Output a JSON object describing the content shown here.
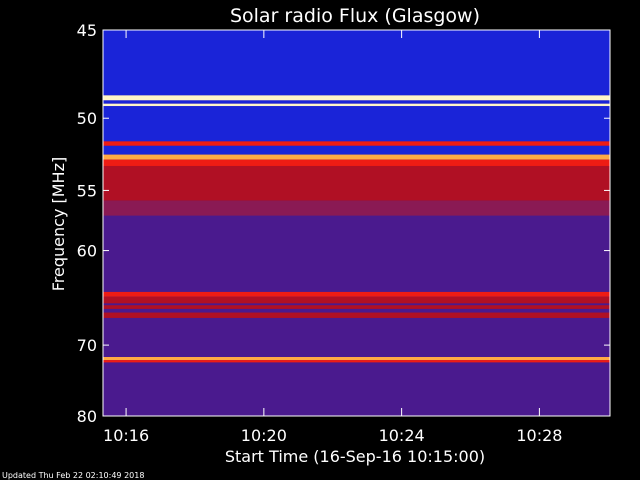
{
  "chart_data": {
    "type": "heatmap",
    "title": "Solar radio Flux (Glasgow)",
    "xlabel": "Start Time (16-Sep-16 10:15:00)",
    "ylabel": "Frequency [MHz]",
    "footer": "Updated Thu Feb 22 02:10:49 2018",
    "x_ticks": [
      "10:16",
      "10:20",
      "10:24",
      "10:28"
    ],
    "x_tick_minutes": [
      1,
      5,
      9,
      13
    ],
    "x_range_minutes": [
      0.33,
      15.05
    ],
    "y_ticks": [
      45,
      50,
      55,
      60,
      70,
      80
    ],
    "ylim": [
      45,
      80
    ],
    "y_scale": "reciprocal",
    "background_band": "purple",
    "bands": [
      {
        "from": 45.0,
        "to": 48.6,
        "level": "blue"
      },
      {
        "from": 48.6,
        "to": 48.9,
        "level": "white"
      },
      {
        "from": 48.9,
        "to": 49.1,
        "level": "blue"
      },
      {
        "from": 49.1,
        "to": 49.25,
        "level": "white"
      },
      {
        "from": 49.25,
        "to": 51.5,
        "level": "blue"
      },
      {
        "from": 51.5,
        "to": 51.8,
        "level": "red"
      },
      {
        "from": 51.8,
        "to": 52.4,
        "level": "blue"
      },
      {
        "from": 52.4,
        "to": 52.75,
        "level": "orange"
      },
      {
        "from": 52.75,
        "to": 53.2,
        "level": "red"
      },
      {
        "from": 53.2,
        "to": 55.8,
        "level": "dark-red"
      },
      {
        "from": 55.8,
        "to": 57.0,
        "level": "red-purple"
      },
      {
        "from": 57.0,
        "to": 61.0,
        "level": "purple"
      },
      {
        "from": 64.0,
        "to": 64.5,
        "level": "red"
      },
      {
        "from": 64.5,
        "to": 65.2,
        "level": "dark-red"
      },
      {
        "from": 65.4,
        "to": 65.8,
        "level": "dark-red"
      },
      {
        "from": 66.2,
        "to": 66.8,
        "level": "dark-red"
      },
      {
        "from": 71.5,
        "to": 71.9,
        "level": "orange"
      },
      {
        "from": 71.9,
        "to": 72.2,
        "level": "red"
      }
    ],
    "colors": {
      "white": "#fff6c8",
      "orange": "#ffaa44",
      "red": "#ee1c14",
      "dark-red": "#b01024",
      "red-purple": "#8a1a54",
      "purple": "#4a1a8e",
      "blue": "#1a24d8",
      "axis": "#ffffff",
      "background": "#000000"
    }
  }
}
